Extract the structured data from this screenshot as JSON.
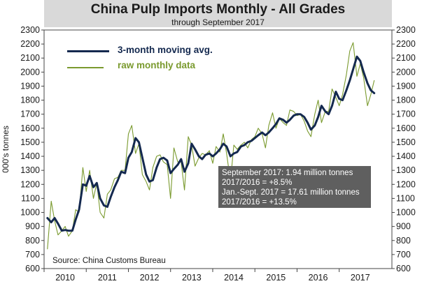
{
  "chart_data": {
    "type": "line",
    "title": "China Pulp Imports Monthly - All Grades",
    "subtitle": "through September 2017",
    "ylabel": "000's tonnes",
    "xlabel": "",
    "ylim": [
      600,
      2300
    ],
    "yticks": [
      600,
      700,
      800,
      900,
      1000,
      1100,
      1200,
      1300,
      1400,
      1500,
      1600,
      1700,
      1800,
      1900,
      2000,
      2100,
      2200,
      2300
    ],
    "xlim": [
      2009.5,
      2017.75
    ],
    "xticks": [
      {
        "label": "2010",
        "x": 2010
      },
      {
        "label": "2011",
        "x": 2011
      },
      {
        "label": "2012",
        "x": 2012
      },
      {
        "label": "2013",
        "x": 2013
      },
      {
        "label": "2014",
        "x": 2014
      },
      {
        "label": "2015",
        "x": 2015
      },
      {
        "label": "2016",
        "x": 2016
      },
      {
        "label": "2017",
        "x": 2017
      }
    ],
    "legend": {
      "position": "top-left"
    },
    "series": [
      {
        "name": "3-month moving avg.",
        "color": "#14294f",
        "points": [
          [
            2009.58,
            960
          ],
          [
            2009.67,
            930
          ],
          [
            2009.75,
            960
          ],
          [
            2009.83,
            920
          ],
          [
            2009.92,
            870
          ],
          [
            2010.0,
            875
          ],
          [
            2010.08,
            870
          ],
          [
            2010.17,
            870
          ],
          [
            2010.25,
            950
          ],
          [
            2010.33,
            1020
          ],
          [
            2010.42,
            1200
          ],
          [
            2010.5,
            1190
          ],
          [
            2010.58,
            1260
          ],
          [
            2010.67,
            1180
          ],
          [
            2010.75,
            1210
          ],
          [
            2010.83,
            1100
          ],
          [
            2010.92,
            1050
          ],
          [
            2011.0,
            1040
          ],
          [
            2011.08,
            1110
          ],
          [
            2011.17,
            1180
          ],
          [
            2011.25,
            1230
          ],
          [
            2011.33,
            1290
          ],
          [
            2011.42,
            1280
          ],
          [
            2011.5,
            1390
          ],
          [
            2011.58,
            1430
          ],
          [
            2011.67,
            1530
          ],
          [
            2011.75,
            1500
          ],
          [
            2011.83,
            1390
          ],
          [
            2011.92,
            1270
          ],
          [
            2012.0,
            1220
          ],
          [
            2012.08,
            1230
          ],
          [
            2012.17,
            1320
          ],
          [
            2012.25,
            1380
          ],
          [
            2012.33,
            1390
          ],
          [
            2012.42,
            1370
          ],
          [
            2012.5,
            1280
          ],
          [
            2012.58,
            1310
          ],
          [
            2012.67,
            1340
          ],
          [
            2012.75,
            1380
          ],
          [
            2012.83,
            1290
          ],
          [
            2012.92,
            1350
          ],
          [
            2013.0,
            1490
          ],
          [
            2013.08,
            1450
          ],
          [
            2013.17,
            1400
          ],
          [
            2013.25,
            1380
          ],
          [
            2013.33,
            1410
          ],
          [
            2013.42,
            1420
          ],
          [
            2013.5,
            1400
          ],
          [
            2013.58,
            1420
          ],
          [
            2013.67,
            1450
          ],
          [
            2013.75,
            1490
          ],
          [
            2013.83,
            1470
          ],
          [
            2013.92,
            1400
          ],
          [
            2014.0,
            1420
          ],
          [
            2014.08,
            1430
          ],
          [
            2014.17,
            1470
          ],
          [
            2014.25,
            1480
          ],
          [
            2014.33,
            1500
          ],
          [
            2014.42,
            1510
          ],
          [
            2014.5,
            1530
          ],
          [
            2014.58,
            1550
          ],
          [
            2014.67,
            1570
          ],
          [
            2014.75,
            1550
          ],
          [
            2014.83,
            1570
          ],
          [
            2014.92,
            1600
          ],
          [
            2015.0,
            1630
          ],
          [
            2015.08,
            1670
          ],
          [
            2015.17,
            1660
          ],
          [
            2015.25,
            1640
          ],
          [
            2015.33,
            1660
          ],
          [
            2015.42,
            1690
          ],
          [
            2015.5,
            1700
          ],
          [
            2015.58,
            1700
          ],
          [
            2015.67,
            1680
          ],
          [
            2015.75,
            1640
          ],
          [
            2015.83,
            1590
          ],
          [
            2015.92,
            1620
          ],
          [
            2016.0,
            1680
          ],
          [
            2016.08,
            1760
          ],
          [
            2016.17,
            1720
          ],
          [
            2016.25,
            1700
          ],
          [
            2016.33,
            1760
          ],
          [
            2016.42,
            1860
          ],
          [
            2016.5,
            1810
          ],
          [
            2016.58,
            1800
          ],
          [
            2016.67,
            1870
          ],
          [
            2016.75,
            1940
          ],
          [
            2016.83,
            2020
          ],
          [
            2016.92,
            2110
          ],
          [
            2017.0,
            2080
          ],
          [
            2017.08,
            2000
          ],
          [
            2017.17,
            1920
          ],
          [
            2017.25,
            1870
          ],
          [
            2017.33,
            1850
          ]
        ]
      },
      {
        "name": "raw monthly data",
        "color": "#7a9a2e",
        "points": [
          [
            2009.58,
            740
          ],
          [
            2009.67,
            1080
          ],
          [
            2009.75,
            940
          ],
          [
            2009.83,
            840
          ],
          [
            2009.92,
            870
          ],
          [
            2010.0,
            900
          ],
          [
            2010.08,
            830
          ],
          [
            2010.17,
            870
          ],
          [
            2010.25,
            1020
          ],
          [
            2010.33,
            1000
          ],
          [
            2010.42,
            1320
          ],
          [
            2010.5,
            1150
          ],
          [
            2010.58,
            1300
          ],
          [
            2010.67,
            1100
          ],
          [
            2010.75,
            1210
          ],
          [
            2010.83,
            1000
          ],
          [
            2010.92,
            960
          ],
          [
            2011.0,
            1130
          ],
          [
            2011.08,
            1160
          ],
          [
            2011.17,
            1240
          ],
          [
            2011.25,
            1250
          ],
          [
            2011.33,
            1300
          ],
          [
            2011.42,
            1300
          ],
          [
            2011.5,
            1560
          ],
          [
            2011.58,
            1620
          ],
          [
            2011.67,
            1420
          ],
          [
            2011.75,
            1490
          ],
          [
            2011.83,
            1270
          ],
          [
            2011.92,
            1220
          ],
          [
            2012.0,
            1160
          ],
          [
            2012.08,
            1320
          ],
          [
            2012.17,
            1400
          ],
          [
            2012.25,
            1410
          ],
          [
            2012.33,
            1360
          ],
          [
            2012.42,
            1340
          ],
          [
            2012.5,
            1100
          ],
          [
            2012.58,
            1460
          ],
          [
            2012.67,
            1360
          ],
          [
            2012.75,
            1360
          ],
          [
            2012.83,
            1160
          ],
          [
            2012.92,
            1540
          ],
          [
            2013.0,
            1480
          ],
          [
            2013.08,
            1330
          ],
          [
            2013.17,
            1390
          ],
          [
            2013.25,
            1420
          ],
          [
            2013.33,
            1410
          ],
          [
            2013.42,
            1440
          ],
          [
            2013.5,
            1350
          ],
          [
            2013.58,
            1470
          ],
          [
            2013.67,
            1430
          ],
          [
            2013.75,
            1560
          ],
          [
            2013.83,
            1420
          ],
          [
            2013.92,
            1220
          ],
          [
            2014.0,
            1480
          ],
          [
            2014.08,
            1450
          ],
          [
            2014.17,
            1480
          ],
          [
            2014.25,
            1500
          ],
          [
            2014.33,
            1460
          ],
          [
            2014.42,
            1520
          ],
          [
            2014.5,
            1540
          ],
          [
            2014.58,
            1600
          ],
          [
            2014.67,
            1560
          ],
          [
            2014.75,
            1460
          ],
          [
            2014.83,
            1620
          ],
          [
            2014.92,
            1710
          ],
          [
            2015.0,
            1600
          ],
          [
            2015.08,
            1670
          ],
          [
            2015.17,
            1640
          ],
          [
            2015.25,
            1620
          ],
          [
            2015.33,
            1730
          ],
          [
            2015.42,
            1720
          ],
          [
            2015.5,
            1690
          ],
          [
            2015.58,
            1700
          ],
          [
            2015.67,
            1650
          ],
          [
            2015.75,
            1580
          ],
          [
            2015.83,
            1540
          ],
          [
            2015.92,
            1700
          ],
          [
            2016.0,
            1800
          ],
          [
            2016.08,
            1640
          ],
          [
            2016.17,
            1720
          ],
          [
            2016.25,
            1720
          ],
          [
            2016.33,
            1880
          ],
          [
            2016.42,
            1820
          ],
          [
            2016.5,
            1760
          ],
          [
            2016.58,
            1840
          ],
          [
            2016.67,
            1980
          ],
          [
            2016.75,
            2150
          ],
          [
            2016.83,
            2210
          ],
          [
            2016.92,
            1970
          ],
          [
            2017.0,
            2060
          ],
          [
            2017.08,
            1960
          ],
          [
            2017.17,
            1760
          ],
          [
            2017.25,
            1840
          ],
          [
            2017.33,
            1940
          ]
        ]
      }
    ]
  },
  "annotation": {
    "lines": [
      "September 2017: 1.94 million tonnes",
      "2017/2016 = +8.5%",
      "Jan.-Sept. 2017 = 17.61 million tonnes",
      "2017/2016 = +13.5%"
    ]
  },
  "source": "Source: China Customs Bureau"
}
